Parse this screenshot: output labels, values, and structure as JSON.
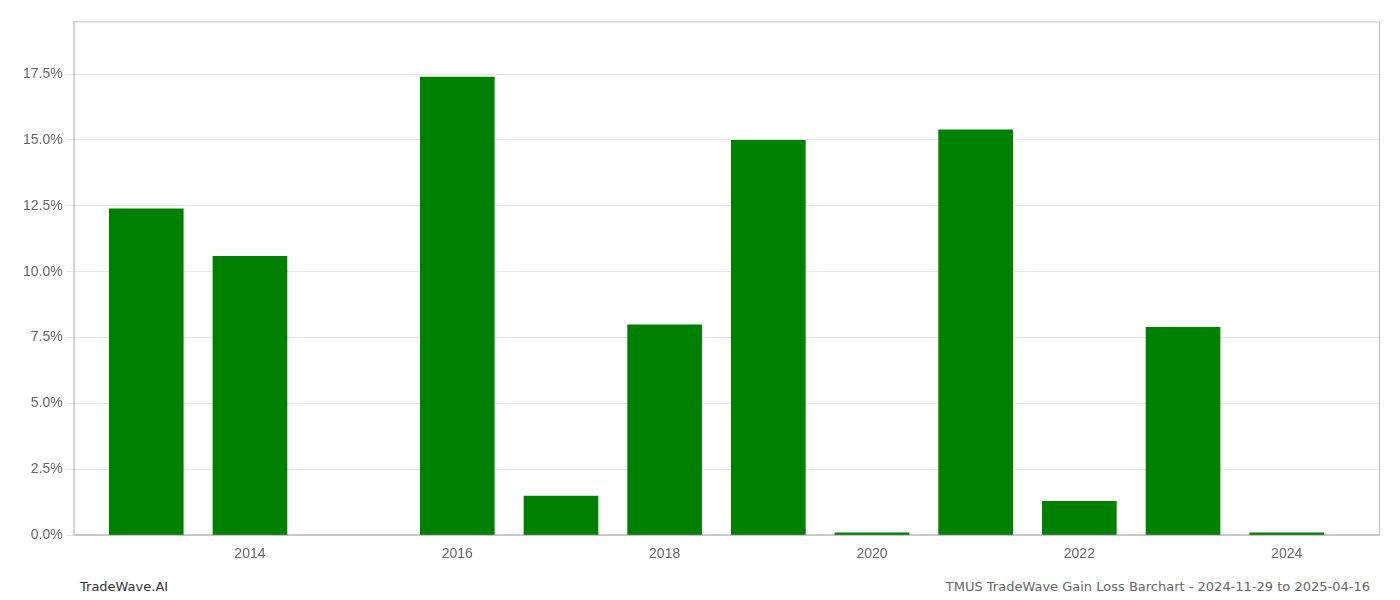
{
  "chart_data": {
    "type": "bar",
    "x": [
      2013,
      2014,
      2015,
      2016,
      2017,
      2018,
      2019,
      2020,
      2021,
      2022,
      2023,
      2024
    ],
    "values": [
      0.124,
      0.106,
      0.0,
      0.174,
      0.015,
      0.08,
      0.15,
      0.001,
      0.154,
      0.013,
      0.079,
      0.001
    ],
    "color": "#008000",
    "xlim": [
      2012.3,
      2024.9
    ],
    "xticks": [
      2014,
      2016,
      2018,
      2020,
      2022,
      2024
    ],
    "ylim": [
      0,
      0.195
    ],
    "yticks": [
      {
        "value": 0.0,
        "label": "0.0%"
      },
      {
        "value": 0.025,
        "label": "2.5%"
      },
      {
        "value": 0.05,
        "label": "5.0%"
      },
      {
        "value": 0.075,
        "label": "7.5%"
      },
      {
        "value": 0.1,
        "label": "10.0%"
      },
      {
        "value": 0.125,
        "label": "12.5%"
      },
      {
        "value": 0.15,
        "label": "15.0%"
      },
      {
        "value": 0.175,
        "label": "17.5%"
      }
    ],
    "grid": "y",
    "annotations": [
      "TradeWave.AI",
      "TMUS TradeWave Gain Loss Barchart - 2024-11-29 to 2025-04-16"
    ]
  }
}
